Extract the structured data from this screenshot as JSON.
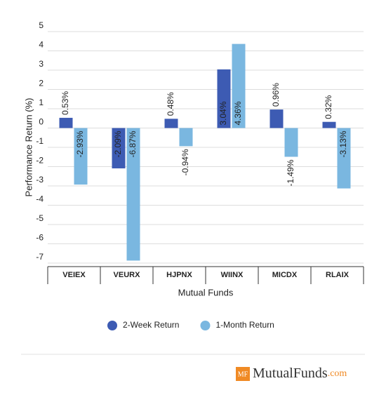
{
  "chart_data": {
    "type": "bar",
    "x_label": "Mutual Funds",
    "y_label": "Performance Return (%)",
    "categories": [
      "VEIEX",
      "VEURX",
      "HJPNX",
      "WIINX",
      "MICDX",
      "RLAIX"
    ],
    "series": [
      {
        "name": "2-Week Return",
        "color": "#3d5bb3",
        "values": [
          0.53,
          -2.09,
          0.48,
          3.04,
          0.96,
          0.32
        ],
        "value_labels": [
          "0.53%",
          "-2.09%",
          "0.48%",
          "3.04%",
          "0.96%",
          "0.32%"
        ]
      },
      {
        "name": "1-Month Return",
        "color": "#7ab7e0",
        "values": [
          -2.93,
          -6.87,
          -0.94,
          4.36,
          -1.49,
          -3.13
        ],
        "value_labels": [
          "-2.93%",
          "-6.87%",
          "-0.94%",
          "4.36%",
          "-1.49%",
          "-3.13%"
        ]
      }
    ],
    "ylim": [
      -7,
      5
    ],
    "yticks": [
      -7,
      -6,
      -5,
      -4,
      -3,
      -2,
      -1,
      0,
      1,
      2,
      3,
      4,
      5
    ],
    "grid": true
  },
  "logo": {
    "badge": "MF",
    "name": "MutualFunds",
    "suffix": ".com"
  }
}
